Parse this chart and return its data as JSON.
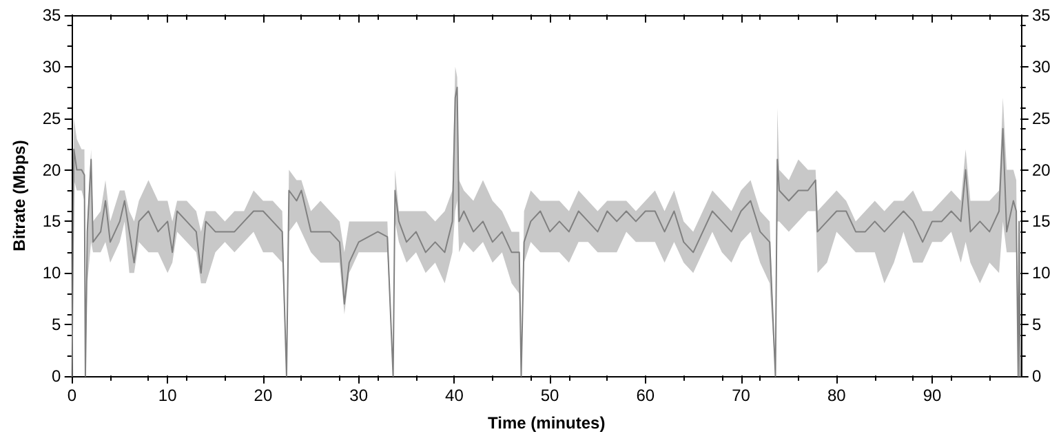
{
  "chart_data": {
    "type": "line",
    "xlabel": "Time (minutes)",
    "ylabel": "Bitrate (Mbps)",
    "xlim": [
      0,
      99.3
    ],
    "xticks": [
      0,
      10,
      20,
      30,
      40,
      50,
      60,
      70,
      80,
      90
    ],
    "ylim": [
      0,
      35
    ],
    "yticks": [
      0,
      5,
      10,
      15,
      20,
      25,
      30,
      35
    ],
    "y2lim": [
      0,
      35
    ],
    "y2ticks": [
      0,
      5,
      10,
      15,
      20,
      25,
      30,
      35
    ],
    "marker": "none",
    "line_style": "solid",
    "x": [
      0,
      0.2,
      0.5,
      1.0,
      1.3,
      1.4,
      1.6,
      2.0,
      2.2,
      3,
      3.5,
      4,
      5,
      5.5,
      6,
      6.5,
      7,
      8,
      9,
      10,
      10.5,
      11,
      12,
      13,
      13.5,
      14,
      15,
      16,
      17,
      18,
      19,
      20,
      21,
      22,
      22.45,
      22.7,
      23.5,
      24,
      25,
      26,
      27,
      28,
      28.5,
      29,
      30,
      31,
      32,
      33,
      33.6,
      33.8,
      34.2,
      35,
      36,
      37,
      38,
      39,
      39.8,
      40.1,
      40.3,
      40.5,
      41,
      42,
      43,
      44,
      45,
      46,
      46.8,
      47.0,
      47.3,
      48,
      49,
      50,
      51,
      52,
      53,
      54,
      55,
      56,
      57,
      58,
      59,
      60,
      61,
      62,
      63,
      64,
      65,
      66,
      67,
      68,
      69,
      70,
      71,
      72,
      73,
      73.6,
      73.8,
      74,
      75,
      76,
      77,
      77.8,
      78,
      79,
      80,
      81,
      82,
      83,
      84,
      85,
      86,
      87,
      88,
      89,
      90,
      91,
      92,
      93,
      93.5,
      94,
      95,
      96,
      97,
      97.4,
      97.8,
      98.5,
      98.8,
      99.0,
      99.1,
      99.2
    ],
    "series": [
      {
        "color": "#808080",
        "values": [
          0,
          22,
          20,
          20,
          19.5,
          0,
          14,
          21,
          13,
          14,
          17,
          13,
          15,
          17,
          14,
          11,
          15,
          16,
          14,
          15,
          12,
          16,
          15,
          14,
          10,
          15,
          14,
          14,
          14,
          15,
          16,
          16,
          15,
          14,
          0,
          18,
          17,
          18,
          14,
          14,
          14,
          13,
          7,
          11,
          13,
          13.5,
          14,
          13.5,
          0,
          18,
          15,
          13,
          14,
          12,
          13,
          12,
          15,
          27,
          28,
          15,
          16,
          14,
          15,
          13,
          14,
          12,
          12,
          0,
          13,
          15,
          16,
          14,
          15,
          14,
          16,
          15,
          14,
          16,
          15,
          16,
          15,
          16,
          16,
          14,
          16,
          13,
          12,
          14,
          16,
          15,
          14,
          16,
          17,
          14,
          13,
          0,
          21,
          18,
          17,
          18,
          18,
          19,
          14,
          15,
          16,
          16,
          14,
          14,
          15,
          14,
          15,
          16,
          15,
          13,
          15,
          15,
          16,
          15,
          20,
          14,
          15,
          14,
          16,
          24,
          14,
          17,
          16,
          0,
          15,
          0
        ],
        "lower": [
          0,
          19,
          18,
          18,
          17,
          0,
          9,
          13,
          12,
          12,
          13,
          11,
          13,
          15,
          10,
          10,
          13,
          12,
          12,
          10,
          11,
          14,
          13,
          12,
          9,
          9,
          12,
          13,
          12,
          13,
          14,
          12,
          12,
          11,
          0,
          14,
          15,
          14,
          12,
          11,
          11,
          11,
          6,
          10,
          12,
          12,
          12,
          12,
          0,
          15,
          13,
          11,
          12,
          10,
          11,
          9,
          12,
          16,
          17,
          12,
          13,
          12,
          13,
          11,
          12,
          9,
          8,
          0,
          11,
          13,
          12,
          12,
          12,
          11,
          13,
          13,
          12,
          12,
          12,
          14,
          13,
          13,
          13,
          11,
          13,
          11,
          10,
          12,
          14,
          12,
          11,
          13,
          14,
          11,
          9,
          0,
          15,
          15,
          14,
          15,
          16,
          16,
          10,
          11,
          14,
          13,
          12,
          12,
          12,
          9,
          11,
          14,
          11,
          11,
          13,
          13,
          14,
          11,
          13,
          11,
          9,
          11,
          10,
          15,
          12,
          12,
          12,
          0,
          15,
          0
        ],
        "upper": [
          0,
          25,
          23,
          22,
          22,
          0,
          15,
          22,
          15,
          16,
          19,
          15,
          18,
          18,
          16,
          15,
          17,
          19,
          17,
          17,
          15,
          17,
          17,
          16,
          14,
          16,
          16,
          15,
          16,
          16,
          18,
          17,
          17,
          16,
          0,
          20,
          19,
          19,
          16,
          17,
          16,
          15,
          12,
          15,
          15,
          15,
          15,
          15,
          0,
          20,
          16,
          16,
          16,
          16,
          15,
          16,
          18,
          30,
          29,
          19,
          18,
          17,
          19,
          17,
          16,
          14,
          14,
          0,
          16,
          18,
          17,
          17,
          17,
          16,
          18,
          17,
          16,
          17,
          17,
          17,
          16,
          17,
          18,
          16,
          18,
          15,
          14,
          16,
          18,
          17,
          16,
          18,
          19,
          16,
          15,
          0,
          26,
          20,
          19,
          21,
          20,
          20,
          16,
          17,
          18,
          17,
          15,
          16,
          17,
          16,
          17,
          17,
          18,
          16,
          16,
          17,
          18,
          17,
          22,
          17,
          17,
          17,
          18,
          27,
          20,
          20,
          19,
          0,
          15,
          0
        ]
      }
    ]
  }
}
